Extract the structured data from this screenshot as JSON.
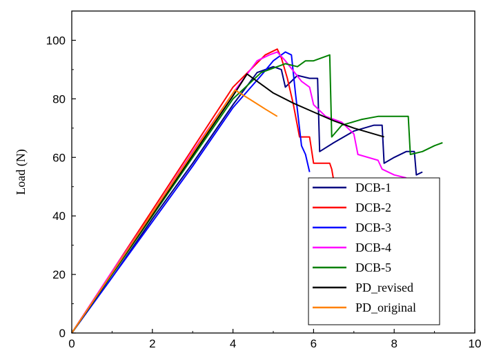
{
  "chart_data": {
    "type": "line",
    "title": "",
    "xlabel": "",
    "ylabel": "Load (N)",
    "xlim": [
      0,
      10
    ],
    "ylim": [
      0,
      110
    ],
    "xticks": [
      0,
      2,
      4,
      6,
      8,
      10
    ],
    "yticks": [
      0,
      20,
      40,
      60,
      80,
      100
    ],
    "x_tick_labels": [
      "0",
      "2",
      "4",
      "6",
      "8",
      "10"
    ],
    "y_tick_labels": [
      "0",
      "20",
      "40",
      "60",
      "80",
      "100"
    ],
    "grid": false,
    "legend_position": "bottom-right",
    "series": [
      {
        "name": "DCB-1",
        "color": "#000080",
        "points": [
          [
            0,
            0
          ],
          [
            1,
            19
          ],
          [
            2,
            39
          ],
          [
            3,
            58
          ],
          [
            4,
            78
          ],
          [
            4.6,
            89
          ],
          [
            5.0,
            91
          ],
          [
            5.2,
            90
          ],
          [
            5.3,
            84
          ],
          [
            5.45,
            86
          ],
          [
            5.6,
            88
          ],
          [
            5.9,
            87
          ],
          [
            6.1,
            87
          ],
          [
            6.15,
            62
          ],
          [
            6.5,
            65
          ],
          [
            7.0,
            69
          ],
          [
            7.5,
            71
          ],
          [
            7.7,
            71
          ],
          [
            7.75,
            58
          ],
          [
            8.0,
            60
          ],
          [
            8.3,
            62
          ],
          [
            8.5,
            62
          ],
          [
            8.55,
            54
          ],
          [
            8.7,
            55
          ]
        ]
      },
      {
        "name": "DCB-2",
        "color": "#ff0000",
        "points": [
          [
            0,
            0
          ],
          [
            1,
            21
          ],
          [
            2,
            42
          ],
          [
            3,
            63
          ],
          [
            4,
            84
          ],
          [
            4.8,
            95
          ],
          [
            5.1,
            97
          ],
          [
            5.2,
            94
          ],
          [
            5.35,
            87
          ],
          [
            5.5,
            78
          ],
          [
            5.65,
            67
          ],
          [
            5.8,
            67
          ],
          [
            5.9,
            67
          ],
          [
            6.0,
            58
          ],
          [
            6.4,
            58
          ],
          [
            6.45,
            56
          ],
          [
            6.5,
            52
          ]
        ]
      },
      {
        "name": "DCB-3",
        "color": "#0000ff",
        "points": [
          [
            0,
            0
          ],
          [
            1,
            19
          ],
          [
            2,
            38
          ],
          [
            3,
            57
          ],
          [
            4,
            77
          ],
          [
            4.7,
            88
          ],
          [
            5.0,
            93
          ],
          [
            5.3,
            96
          ],
          [
            5.45,
            95
          ],
          [
            5.55,
            82
          ],
          [
            5.7,
            64
          ],
          [
            5.8,
            61
          ],
          [
            5.9,
            55
          ]
        ]
      },
      {
        "name": "DCB-4",
        "color": "#ff00ff",
        "points": [
          [
            0,
            0
          ],
          [
            1,
            21
          ],
          [
            2,
            41
          ],
          [
            3,
            62
          ],
          [
            4,
            82
          ],
          [
            4.6,
            93
          ],
          [
            4.9,
            95
          ],
          [
            5.1,
            96
          ],
          [
            5.3,
            93
          ],
          [
            5.7,
            86
          ],
          [
            5.9,
            84
          ],
          [
            6.0,
            78
          ],
          [
            6.3,
            74
          ],
          [
            6.7,
            72
          ],
          [
            7.0,
            68
          ],
          [
            7.1,
            61
          ],
          [
            7.6,
            59
          ],
          [
            7.7,
            56
          ],
          [
            8.0,
            54
          ],
          [
            8.3,
            53
          ]
        ]
      },
      {
        "name": "DCB-5",
        "color": "#008000",
        "points": [
          [
            0,
            0
          ],
          [
            1,
            20
          ],
          [
            2,
            40
          ],
          [
            3,
            60
          ],
          [
            4,
            80
          ],
          [
            4.7,
            89
          ],
          [
            5.1,
            91
          ],
          [
            5.3,
            92
          ],
          [
            5.6,
            91
          ],
          [
            5.8,
            93
          ],
          [
            6.0,
            93
          ],
          [
            6.2,
            94
          ],
          [
            6.4,
            95
          ],
          [
            6.45,
            67
          ],
          [
            6.7,
            71
          ],
          [
            7.2,
            73
          ],
          [
            7.6,
            74
          ],
          [
            8.0,
            74
          ],
          [
            8.35,
            74
          ],
          [
            8.4,
            61
          ],
          [
            8.7,
            62
          ],
          [
            9.0,
            64
          ],
          [
            9.2,
            65
          ]
        ]
      },
      {
        "name": "PD_revised",
        "color": "#000000",
        "points": [
          [
            0,
            0
          ],
          [
            1,
            20.3
          ],
          [
            2,
            40.5
          ],
          [
            3,
            60.8
          ],
          [
            4,
            81
          ],
          [
            4.35,
            88.5
          ],
          [
            4.6,
            86
          ],
          [
            5.0,
            82
          ],
          [
            5.5,
            78.5
          ],
          [
            6.0,
            75.5
          ],
          [
            6.5,
            72.5
          ],
          [
            7.0,
            70
          ],
          [
            7.5,
            68
          ],
          [
            7.75,
            67
          ]
        ]
      },
      {
        "name": "PD_original",
        "color": "#ff8000",
        "points": [
          [
            0,
            0
          ],
          [
            1,
            20.5
          ],
          [
            2,
            41
          ],
          [
            3,
            61.5
          ],
          [
            4.05,
            83
          ],
          [
            4.4,
            80
          ],
          [
            4.8,
            76.5
          ],
          [
            5.1,
            74
          ]
        ]
      }
    ]
  }
}
